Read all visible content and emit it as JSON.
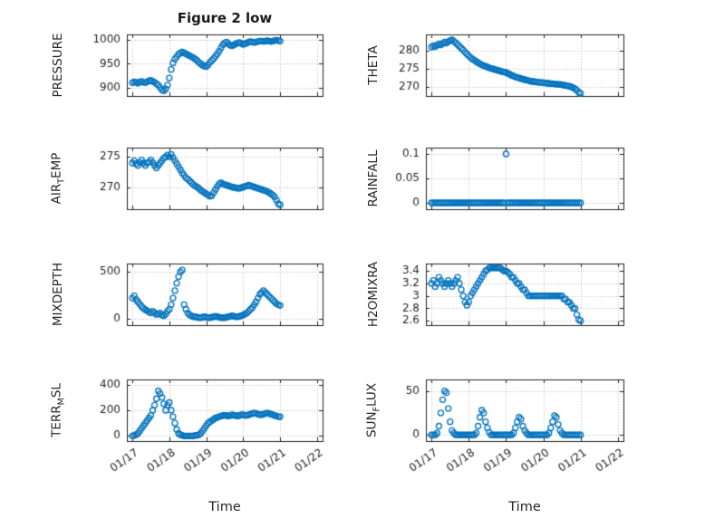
{
  "title": "Figure 2 low",
  "xlabel": "Time",
  "axes": {
    "xlim": [
      16.85,
      22.15
    ],
    "xtick_vals": [
      17,
      18,
      19,
      20,
      21,
      22
    ],
    "xtick_labels": [
      "01/17",
      "01/18",
      "01/19",
      "01/20",
      "01/21",
      "01/22"
    ],
    "marker_color": "#0072BD",
    "grid": true
  },
  "chart_data": [
    {
      "name": "PRESSURE",
      "type": "scatter",
      "ylabel_parts": [
        {
          "t": "PRESSURE"
        }
      ],
      "ylim": [
        882,
        1012
      ],
      "ytick_vals": [
        900,
        950,
        1000
      ],
      "ytick_labels": [
        "900",
        "950",
        "1000"
      ],
      "series": {
        "x0": 17.0,
        "dx": 0.05,
        "y": [
          910,
          912,
          911,
          909,
          912,
          913,
          911,
          910,
          912,
          914,
          915,
          913,
          911,
          908,
          905,
          900,
          895,
          893,
          897,
          905,
          920,
          938,
          952,
          960,
          965,
          970,
          973,
          975,
          973,
          971,
          969,
          967,
          965,
          963,
          960,
          957,
          953,
          950,
          947,
          945,
          944,
          948,
          953,
          957,
          961,
          966,
          971,
          977,
          984,
          990,
          994,
          996,
          992,
          989,
          988,
          990,
          992,
          994,
          995,
          993,
          991,
          992,
          994,
          996,
          997,
          996,
          995,
          996,
          997,
          998,
          998,
          997,
          998,
          999,
          998,
          997,
          998,
          999,
          1000,
          999,
          998
        ]
      }
    },
    {
      "name": "THETA",
      "type": "scatter",
      "ylabel_parts": [
        {
          "t": "THETA"
        }
      ],
      "ylim": [
        267.5,
        284.5
      ],
      "ytick_vals": [
        270,
        275,
        280
      ],
      "ytick_labels": [
        "270",
        "275",
        "280"
      ],
      "series": {
        "x0": 17.0,
        "dx": 0.05,
        "y": [
          281,
          281.4,
          281.1,
          281.5,
          281.9,
          281.6,
          282,
          282.4,
          282.1,
          282.5,
          282.8,
          283,
          282.6,
          282.2,
          281.7,
          281.2,
          280.7,
          280.2,
          279.6,
          279.1,
          278.6,
          278.1,
          277.7,
          277.4,
          277,
          276.7,
          276.4,
          276.1,
          275.9,
          275.7,
          275.5,
          275.3,
          275.1,
          275,
          274.8,
          274.7,
          274.5,
          274.4,
          274.2,
          274.1,
          274,
          273.7,
          273.5,
          273.2,
          273,
          272.8,
          272.6,
          272.5,
          272.3,
          272.2,
          272,
          271.9,
          271.8,
          271.6,
          271.5,
          271.5,
          271.4,
          271.3,
          271.3,
          271.2,
          271.2,
          271.1,
          271,
          271,
          270.9,
          270.9,
          270.8,
          270.8,
          270.7,
          270.7,
          270.6,
          270.5,
          270.4,
          270.3,
          270.2,
          270,
          269.8,
          269.5,
          269.1,
          268.5,
          268.2
        ]
      }
    },
    {
      "name": "AIR_TEMP",
      "type": "scatter",
      "ylabel_parts": [
        {
          "t": "AIR"
        },
        {
          "t": "T",
          "sub": true
        },
        {
          "t": "EMP"
        }
      ],
      "ylim": [
        266.5,
        276.5
      ],
      "ytick_vals": [
        270,
        275
      ],
      "ytick_labels": [
        "270",
        "275"
      ],
      "series": {
        "x0": 17.0,
        "dx": 0.05,
        "y": [
          274,
          274.4,
          273.9,
          273.6,
          274.1,
          274.5,
          274,
          273.6,
          274,
          274.2,
          274.5,
          274.1,
          273.6,
          273.2,
          273.6,
          274,
          274.4,
          274.8,
          275,
          275.3,
          275,
          275.4,
          274.9,
          274.4,
          273.9,
          273.4,
          272.9,
          272.4,
          272,
          271.6,
          271.4,
          271.1,
          270.8,
          270.5,
          270.3,
          270.1,
          269.9,
          269.6,
          269.4,
          269.2,
          269,
          268.8,
          268.6,
          268.7,
          269.2,
          269.7,
          270.2,
          270.6,
          270.8,
          270.6,
          270.5,
          270.4,
          270.3,
          270.2,
          270.1,
          270,
          270,
          269.9,
          269.9,
          270,
          270.1,
          270.2,
          270.3,
          270.4,
          270.3,
          270.2,
          270.1,
          270,
          269.9,
          269.8,
          269.7,
          269.6,
          269.5,
          269.4,
          269.2,
          269,
          268.8,
          268.5,
          268,
          267.4,
          267.2
        ]
      }
    },
    {
      "name": "RAINFALL",
      "type": "scatter",
      "ylabel_parts": [
        {
          "t": "RAINFALL"
        }
      ],
      "ylim": [
        -0.013,
        0.113
      ],
      "ytick_vals": [
        0,
        0.05,
        0.1
      ],
      "ytick_labels": [
        "0",
        "0.05",
        "0.1"
      ],
      "series": {
        "x0": 17.0,
        "dx": 0.05,
        "y": [
          0,
          0,
          0,
          0,
          0,
          0,
          0,
          0,
          0,
          0,
          0,
          0,
          0,
          0,
          0,
          0,
          0,
          0,
          0,
          0,
          0,
          0,
          0,
          0,
          0,
          0,
          0,
          0,
          0,
          0,
          0,
          0,
          0,
          0,
          0,
          0,
          0,
          0,
          0,
          0,
          0.1,
          0,
          0,
          0,
          0,
          0,
          0,
          0,
          0,
          0,
          0,
          0,
          0,
          0,
          0,
          0,
          0,
          0,
          0,
          0,
          0,
          0,
          0,
          0,
          0,
          0,
          0,
          0,
          0,
          0,
          0,
          0,
          0,
          0,
          0,
          0,
          0,
          0,
          0,
          0,
          0
        ]
      }
    },
    {
      "name": "MIXDEPTH",
      "type": "scatter",
      "ylabel_parts": [
        {
          "t": "MIXDEPTH"
        }
      ],
      "ylim": [
        -70,
        590
      ],
      "ytick_vals": [
        0,
        500
      ],
      "ytick_labels": [
        "0",
        "500"
      ],
      "series": {
        "x0": 17.0,
        "dx": 0.05,
        "y": [
          220,
          245,
          205,
          180,
          155,
          130,
          110,
          95,
          85,
          70,
          60,
          80,
          65,
          45,
          50,
          60,
          40,
          30,
          50,
          80,
          100,
          150,
          220,
          300,
          380,
          450,
          500,
          520,
          150,
          100,
          60,
          40,
          30,
          20,
          20,
          15,
          10,
          10,
          15,
          20,
          15,
          10,
          10,
          15,
          20,
          25,
          20,
          15,
          10,
          10,
          10,
          15,
          20,
          25,
          30,
          25,
          20,
          20,
          25,
          30,
          40,
          50,
          60,
          80,
          100,
          120,
          150,
          180,
          220,
          260,
          280,
          300,
          280,
          260,
          240,
          220,
          200,
          180,
          160,
          150,
          140
        ]
      }
    },
    {
      "name": "H2OMIXRA",
      "type": "scatter",
      "ylabel_parts": [
        {
          "t": "H2OMIXRA"
        }
      ],
      "ylim": [
        2.53,
        3.52
      ],
      "ytick_vals": [
        2.6,
        2.8,
        3,
        3.2,
        3.4
      ],
      "ytick_labels": [
        "2.6",
        "2.8",
        "3",
        "3.2",
        "3.4"
      ],
      "series": {
        "x0": 17.0,
        "dx": 0.05,
        "y": [
          3.2,
          3.25,
          3.15,
          3.2,
          3.3,
          3.25,
          3.2,
          3.15,
          3.2,
          3.25,
          3.2,
          3.15,
          3.2,
          3.25,
          3.3,
          3.2,
          3.1,
          3.0,
          2.9,
          2.85,
          2.9,
          3.0,
          3.05,
          3.1,
          3.15,
          3.2,
          3.25,
          3.3,
          3.35,
          3.4,
          3.42,
          3.45,
          3.45,
          3.45,
          3.45,
          3.45,
          3.45,
          3.45,
          3.42,
          3.4,
          3.4,
          3.38,
          3.35,
          3.3,
          3.3,
          3.25,
          3.2,
          3.2,
          3.15,
          3.1,
          3.1,
          3.05,
          3.0,
          3.0,
          3.0,
          3.0,
          3.0,
          3.0,
          3.0,
          3.0,
          3.0,
          3.0,
          3.0,
          3.0,
          3.0,
          3.0,
          3.0,
          3.0,
          3.0,
          3.0,
          3.0,
          2.95,
          2.95,
          2.9,
          2.9,
          2.85,
          2.8,
          2.8,
          2.7,
          2.62,
          2.6
        ]
      }
    },
    {
      "name": "TERR_MSL",
      "type": "scatter",
      "ylabel_parts": [
        {
          "t": "TERR"
        },
        {
          "t": "M",
          "sub": true
        },
        {
          "t": "SL"
        }
      ],
      "ylim": [
        -40,
        440
      ],
      "ytick_vals": [
        0,
        200,
        400
      ],
      "ytick_labels": [
        "0",
        "200",
        "400"
      ],
      "series": {
        "x0": 17.0,
        "dx": 0.05,
        "y": [
          0,
          5,
          10,
          20,
          40,
          60,
          80,
          100,
          120,
          140,
          160,
          200,
          240,
          290,
          350,
          330,
          300,
          250,
          200,
          240,
          260,
          200,
          150,
          100,
          50,
          20,
          10,
          5,
          0,
          0,
          0,
          0,
          0,
          0,
          5,
          5,
          10,
          20,
          40,
          60,
          80,
          100,
          110,
          120,
          130,
          140,
          145,
          150,
          155,
          160,
          160,
          160,
          155,
          160,
          165,
          160,
          160,
          155,
          160,
          165,
          165,
          160,
          160,
          165,
          170,
          175,
          180,
          175,
          170,
          165,
          165,
          170,
          175,
          180,
          175,
          170,
          165,
          160,
          155,
          150,
          150
        ]
      }
    },
    {
      "name": "SUN_FLUX",
      "type": "scatter",
      "ylabel_parts": [
        {
          "t": "SUN"
        },
        {
          "t": "F",
          "sub": true
        },
        {
          "t": "LUX"
        }
      ],
      "ylim": [
        -7,
        63
      ],
      "ytick_vals": [
        0,
        50
      ],
      "ytick_labels": [
        "0",
        "50"
      ],
      "series": {
        "x0": 17.0,
        "dx": 0.05,
        "y": [
          0,
          0,
          0,
          2,
          10,
          25,
          40,
          50,
          48,
          30,
          15,
          5,
          2,
          0,
          0,
          0,
          0,
          0,
          0,
          0,
          0,
          0,
          0,
          0,
          2,
          10,
          20,
          28,
          25,
          15,
          8,
          3,
          0,
          0,
          0,
          0,
          0,
          0,
          0,
          0,
          0,
          0,
          0,
          0,
          2,
          8,
          15,
          20,
          18,
          10,
          5,
          2,
          0,
          0,
          0,
          0,
          0,
          0,
          0,
          0,
          0,
          0,
          0,
          2,
          8,
          15,
          22,
          20,
          12,
          5,
          2,
          0,
          0,
          0,
          0,
          0,
          0,
          0,
          0,
          0,
          0
        ]
      }
    }
  ]
}
